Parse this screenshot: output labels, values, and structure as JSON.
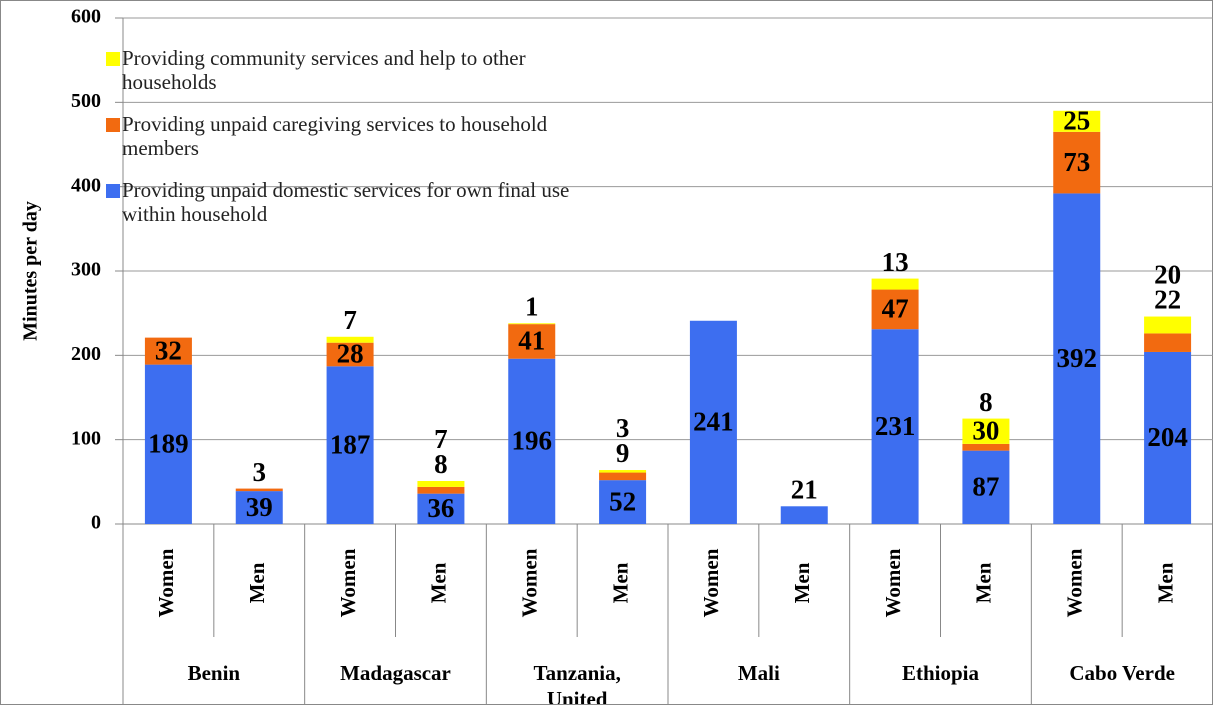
{
  "chart_data": {
    "type": "stacked_bar",
    "y_label": "Minutes per day",
    "categories": [
      "Women",
      "Men",
      "Women",
      "Men",
      "Women",
      "Men",
      "Women",
      "Men",
      "Women",
      "Men",
      "Women",
      "Men"
    ],
    "groups": [
      "Benin",
      "Madagascar",
      "Tanzania, United",
      "Mali",
      "Ethiopia",
      "Cabo Verde"
    ],
    "series": [
      {
        "name": "Providing unpaid domestic services for own final use within household",
        "color": "#3d6ef0",
        "values": [
          189,
          39,
          187,
          36,
          196,
          52,
          241,
          21,
          231,
          87,
          392,
          204
        ]
      },
      {
        "name": "Providing unpaid caregiving services to household members",
        "color": "#f26a10",
        "values": [
          32,
          3,
          28,
          8,
          41,
          9,
          null,
          null,
          47,
          8,
          73,
          22
        ]
      },
      {
        "name": "Providing community services and help to other households",
        "color": "#ffff00",
        "values": [
          null,
          null,
          7,
          7,
          1,
          3,
          null,
          null,
          13,
          30,
          25,
          20
        ]
      }
    ],
    "ylim": [
      0,
      600
    ],
    "yticks": [
      0,
      100,
      200,
      300,
      400,
      500,
      600
    ],
    "grid": true
  }
}
